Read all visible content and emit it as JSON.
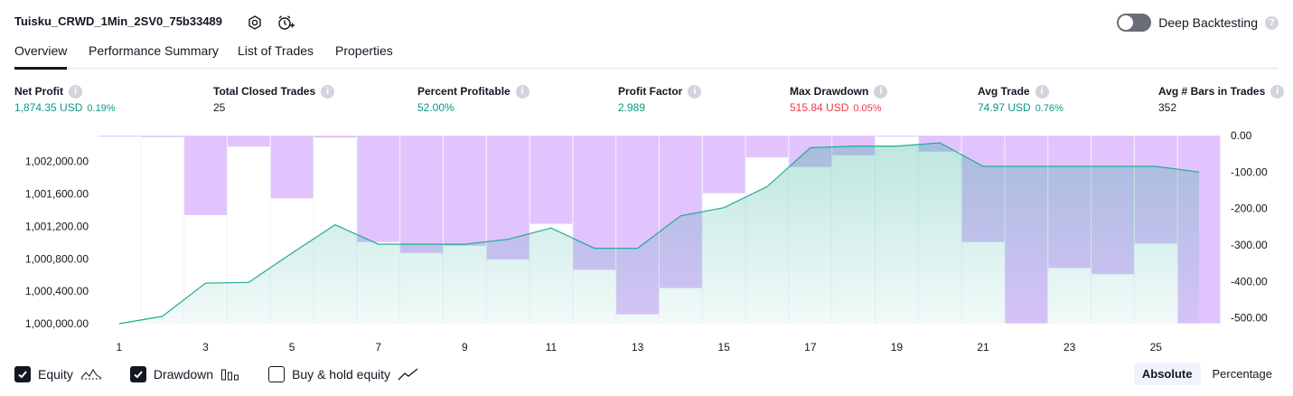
{
  "header": {
    "title": "Tuisku_CRWD_1Min_2SV0_75b33489",
    "deep_backtesting_label": "Deep Backtesting",
    "deep_backtesting_on": false
  },
  "tabs": [
    {
      "label": "Overview",
      "active": true
    },
    {
      "label": "Performance Summary",
      "active": false
    },
    {
      "label": "List of Trades",
      "active": false
    },
    {
      "label": "Properties",
      "active": false
    }
  ],
  "metrics": [
    {
      "label": "Net Profit",
      "value": "1,874.35 USD",
      "pct": "0.19%",
      "color": "green"
    },
    {
      "label": "Total Closed Trades",
      "value": "25",
      "pct": "",
      "color": "dark"
    },
    {
      "label": "Percent Profitable",
      "value": "52.00%",
      "pct": "",
      "color": "green"
    },
    {
      "label": "Profit Factor",
      "value": "2.989",
      "pct": "",
      "color": "green"
    },
    {
      "label": "Max Drawdown",
      "value": "515.84 USD",
      "pct": "0.05%",
      "color": "red"
    },
    {
      "label": "Avg Trade",
      "value": "74.97 USD",
      "pct": "0.76%",
      "color": "green"
    },
    {
      "label": "Avg # Bars in Trades",
      "value": "352",
      "pct": "",
      "color": "dark"
    }
  ],
  "chart_data": {
    "type": "area",
    "x_tick_labels": [
      "1",
      "3",
      "5",
      "7",
      "9",
      "11",
      "13",
      "15",
      "17",
      "19",
      "21",
      "23",
      "25"
    ],
    "left_axis_labels": [
      "1,002,000.00",
      "1,001,600.00",
      "1,001,200.00",
      "1,000,800.00",
      "1,000,400.00",
      "1,000,000.00"
    ],
    "right_axis_labels": [
      "0.00",
      "-100.00",
      "-200.00",
      "-300.00",
      "-400.00",
      "-500.00"
    ],
    "equity": {
      "name": "Equity",
      "x": [
        1,
        2,
        3,
        4,
        5,
        6,
        7,
        8,
        9,
        10,
        11,
        12,
        13,
        14,
        15,
        16,
        17,
        18,
        19,
        20,
        21,
        22,
        23,
        24,
        25,
        26
      ],
      "values": [
        1000000,
        1000090,
        1000500,
        1000510,
        1000870,
        1001220,
        1000980,
        1000980,
        1000980,
        1001040,
        1001180,
        1000930,
        1000930,
        1001330,
        1001430,
        1001690,
        1002170,
        1002190,
        1002190,
        1002230,
        1001940,
        1001940,
        1001940,
        1001940,
        1001940,
        1001870
      ],
      "ylim": [
        1000000,
        1002230
      ]
    },
    "drawdown": {
      "name": "Drawdown",
      "values": [
        -1,
        -4,
        -218,
        -30,
        -172,
        -5,
        -292,
        -322,
        -302,
        -340,
        -242,
        -368,
        -490,
        -418,
        -158,
        -60,
        -86,
        -54,
        -2,
        -44,
        -292,
        -515,
        -363,
        -380,
        -296,
        -515
      ],
      "ylim": [
        -515.84,
        0
      ]
    },
    "colors": {
      "equity_line": "#22ab94",
      "equity_fill": "#22ab94",
      "drawdown_fill": "#e1c4fd"
    }
  },
  "legend": [
    {
      "label": "Equity",
      "checked": true,
      "icon": "equity-icon"
    },
    {
      "label": "Drawdown",
      "checked": true,
      "icon": "drawdown-icon"
    },
    {
      "label": "Buy & hold equity",
      "checked": false,
      "icon": "buy-hold-icon"
    }
  ],
  "scale_toggle": {
    "absolute_label": "Absolute",
    "percentage_label": "Percentage",
    "selected": "Absolute"
  }
}
